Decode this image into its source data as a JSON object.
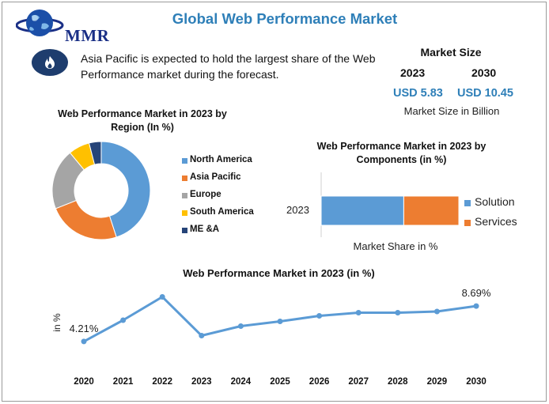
{
  "brand": {
    "logo_text": "MMR"
  },
  "header": {
    "title": "Global Web Performance Market"
  },
  "statement": {
    "icon": "flame-icon",
    "text": "Asia Pacific is expected to hold the largest share of the Web Performance market during the forecast."
  },
  "market_size": {
    "title": "Market Size",
    "years": [
      "2023",
      "2030"
    ],
    "values": [
      "USD 5.83",
      "USD 10.45"
    ],
    "note": "Market Size in Billion"
  },
  "colors": {
    "accent": "#2e7fb8",
    "blue": "#5b9bd5",
    "orange": "#ed7d31",
    "gray": "#a5a5a5",
    "yellow": "#ffc000",
    "navy": "#264478"
  },
  "chart_data": [
    {
      "type": "pie",
      "title": "Web Performance Market in 2023 by Region (In %)",
      "donut": true,
      "categories": [
        "North America",
        "Asia Pacific",
        "Europe",
        "South America",
        "ME &A"
      ],
      "values": [
        45,
        24,
        20,
        7,
        4
      ],
      "colors": [
        "#5b9bd5",
        "#ed7d31",
        "#a5a5a5",
        "#ffc000",
        "#264478"
      ],
      "legend": "right"
    },
    {
      "type": "bar",
      "orientation": "horizontal",
      "stacked": true,
      "title": "Web Performance Market in 2023 by Components (in %)",
      "categories": [
        "2023"
      ],
      "series": [
        {
          "name": "Solution",
          "values": [
            60
          ],
          "color": "#5b9bd5"
        },
        {
          "name": "Services",
          "values": [
            40
          ],
          "color": "#ed7d31"
        }
      ],
      "xlabel": "Market Share in %",
      "xlim": [
        0,
        100
      ],
      "legend": "right"
    },
    {
      "type": "line",
      "title": "Web Performance Market in 2023 (in %)",
      "x": [
        "2020",
        "2021",
        "2022",
        "2023",
        "2024",
        "2025",
        "2026",
        "2027",
        "2028",
        "2029",
        "2030"
      ],
      "y": [
        4.21,
        6.9,
        9.85,
        4.95,
        6.15,
        6.75,
        7.45,
        7.85,
        7.85,
        8.0,
        8.69
      ],
      "data_labels": [
        "4.21%",
        "",
        "",
        "",
        "",
        "",
        "",
        "",
        "",
        "",
        "8.69%"
      ],
      "ylabel": "in %",
      "color": "#5b9bd5"
    }
  ]
}
